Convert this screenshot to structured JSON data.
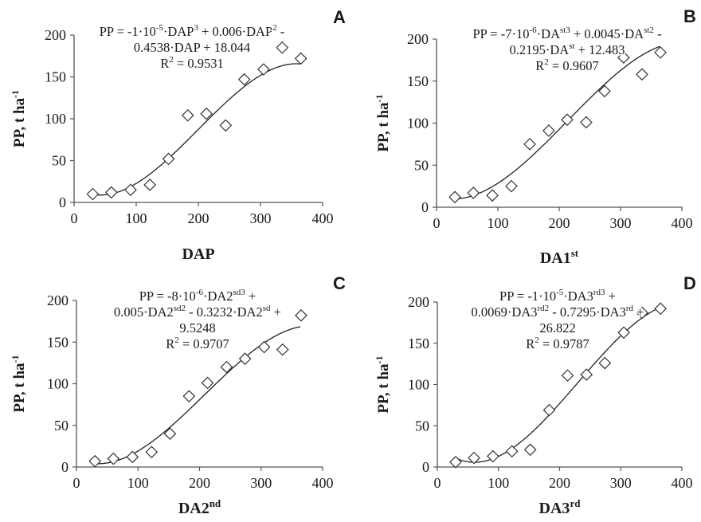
{
  "chart_data": [
    {
      "type": "scatter",
      "panel": "A",
      "ylabel": {
        "base": "PP, t ha",
        "sup": "-1"
      },
      "xlabel": {
        "base": "DAP",
        "sup": ""
      },
      "xlim": [
        0,
        400
      ],
      "ylim": [
        0,
        200
      ],
      "xticks": [
        0,
        100,
        200,
        300,
        400
      ],
      "yticks": [
        0,
        50,
        100,
        150,
        200
      ],
      "equation_lines": [
        [
          [
            "PP = -1·10"
          ],
          [
            "-5",
            "sup"
          ],
          [
            "·DAP"
          ],
          [
            "3",
            "sup"
          ],
          [
            " + 0.006·DAP"
          ],
          [
            "2",
            "sup"
          ],
          [
            " -"
          ]
        ],
        [
          [
            "0.4538·DAP + 18.044"
          ]
        ],
        [
          [
            "R"
          ],
          [
            "2",
            "sup"
          ],
          [
            " = 0.9531"
          ]
        ]
      ],
      "trendline": {
        "coef": [
          -1e-05,
          0.006,
          -0.4538,
          18.044
        ],
        "x_range": [
          30,
          365
        ]
      },
      "points": {
        "x": [
          30,
          60,
          91,
          122,
          152,
          183,
          213,
          244,
          274,
          305,
          335,
          365
        ],
        "y": [
          10,
          12,
          15,
          21,
          52,
          104,
          106,
          92,
          147,
          159,
          185,
          172
        ]
      }
    },
    {
      "type": "scatter",
      "panel": "B",
      "ylabel": {
        "base": "PP, t ha",
        "sup": "-1"
      },
      "xlabel": {
        "base": "DA1",
        "sup": "st"
      },
      "xlim": [
        0,
        400
      ],
      "ylim": [
        0,
        200
      ],
      "xticks": [
        0,
        100,
        200,
        300,
        400
      ],
      "yticks": [
        0,
        50,
        100,
        150,
        200
      ],
      "equation_lines": [
        [
          [
            "PP = -7·10"
          ],
          [
            "-6",
            "sup"
          ],
          [
            "·DA"
          ],
          [
            "st3",
            "sup"
          ],
          [
            " + 0.0045·DA"
          ],
          [
            "st2",
            "sup"
          ],
          [
            " -"
          ]
        ],
        [
          [
            "0.2195·DA"
          ],
          [
            "st",
            "sup"
          ],
          [
            " + 12.483"
          ]
        ],
        [
          [
            "R"
          ],
          [
            "2",
            "sup"
          ],
          [
            " = 0.9607"
          ]
        ]
      ],
      "trendline": {
        "coef": [
          -7e-06,
          0.0045,
          -0.2195,
          12.483
        ],
        "x_range": [
          30,
          365
        ]
      },
      "points": {
        "x": [
          30,
          60,
          91,
          122,
          152,
          183,
          213,
          244,
          274,
          305,
          335,
          365
        ],
        "y": [
          12,
          17,
          14,
          25,
          75,
          91,
          104,
          101,
          138,
          178,
          158,
          184
        ]
      }
    },
    {
      "type": "scatter",
      "panel": "C",
      "ylabel": {
        "base": "PP, t ha",
        "sup": "-1"
      },
      "xlabel": {
        "base": "DA2",
        "sup": "nd"
      },
      "xlim": [
        0,
        400
      ],
      "ylim": [
        0,
        200
      ],
      "xticks": [
        0,
        100,
        200,
        300,
        400
      ],
      "yticks": [
        0,
        50,
        100,
        150,
        200
      ],
      "equation_lines": [
        [
          [
            "PP = -8·10"
          ],
          [
            "-6",
            "sup"
          ],
          [
            "·DA2"
          ],
          [
            "sd3",
            "sup"
          ],
          [
            " +"
          ]
        ],
        [
          [
            "0.005·DA2"
          ],
          [
            "sd2",
            "sup"
          ],
          [
            " - 0.3232·DA2"
          ],
          [
            "sd",
            "sup"
          ],
          [
            " +"
          ]
        ],
        [
          [
            "9.5248"
          ]
        ],
        [
          [
            "R"
          ],
          [
            "2",
            "sup"
          ],
          [
            " = 0.9707"
          ]
        ]
      ],
      "trendline": {
        "coef": [
          -8e-06,
          0.005,
          -0.3232,
          9.5248
        ],
        "x_range": [
          30,
          365
        ]
      },
      "points": {
        "x": [
          30,
          60,
          91,
          122,
          152,
          183,
          213,
          244,
          274,
          305,
          335,
          365
        ],
        "y": [
          7,
          10,
          12,
          18,
          40,
          85,
          101,
          120,
          130,
          144,
          141,
          182
        ]
      }
    },
    {
      "type": "scatter",
      "panel": "D",
      "ylabel": {
        "base": "PP, t ha",
        "sup": "-1"
      },
      "xlabel": {
        "base": "DA3",
        "sup": "rd"
      },
      "xlim": [
        0,
        400
      ],
      "ylim": [
        0,
        200
      ],
      "xticks": [
        0,
        100,
        200,
        300,
        400
      ],
      "yticks": [
        0,
        50,
        100,
        150,
        200
      ],
      "equation_lines": [
        [
          [
            "PP = -1·10"
          ],
          [
            "-5",
            "sup"
          ],
          [
            "·DA3"
          ],
          [
            "rd3",
            "sup"
          ],
          [
            " +"
          ]
        ],
        [
          [
            "0.0069·DA3"
          ],
          [
            "rd2",
            "sup"
          ],
          [
            " - 0.7295·DA3"
          ],
          [
            "rd",
            "sup"
          ],
          [
            " +"
          ]
        ],
        [
          [
            "26.822"
          ]
        ],
        [
          [
            "R"
          ],
          [
            "2",
            "sup"
          ],
          [
            " = 0.9787"
          ]
        ]
      ],
      "trendline": {
        "coef": [
          -1e-05,
          0.0069,
          -0.7295,
          26.822
        ],
        "x_range": [
          30,
          365
        ]
      },
      "points": {
        "x": [
          30,
          60,
          91,
          122,
          152,
          183,
          213,
          244,
          274,
          305,
          335,
          365
        ],
        "y": [
          6,
          11,
          13,
          19,
          21,
          69,
          111,
          112,
          126,
          163,
          187,
          192
        ]
      }
    }
  ]
}
